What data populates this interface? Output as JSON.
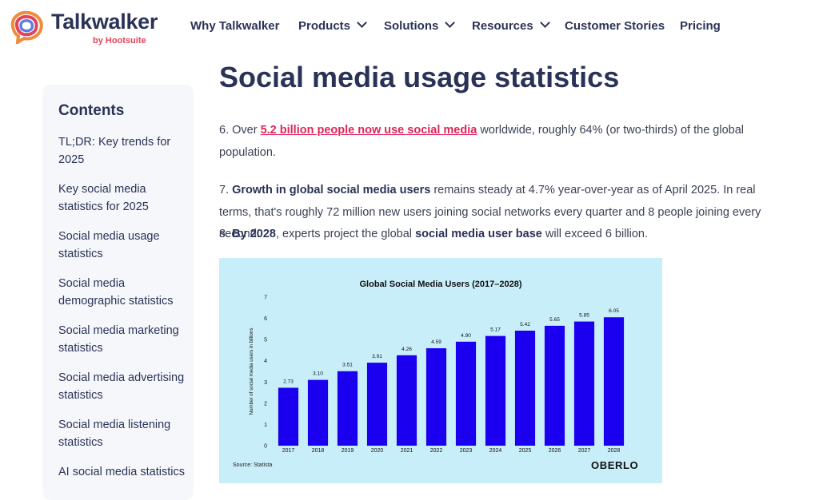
{
  "brand": {
    "name": "Talkwalker",
    "sub": "by Hootsuite",
    "colors": {
      "navy": "#2a3357",
      "pink": "#e2245a",
      "bar": "#1b00f0"
    }
  },
  "nav": {
    "items": [
      "Why Talkwalker",
      "Products",
      "Solutions",
      "Resources",
      "Customer Stories",
      "Pricing"
    ]
  },
  "sidebar": {
    "title": "Contents",
    "items": [
      "TL;DR: Key trends for 2025",
      "Key social media statistics for 2025",
      "Social media usage statistics",
      "Social media demographic statistics",
      "Social media marketing statistics",
      "Social media advertising statistics",
      "Social media listening statistics",
      "AI social media statistics"
    ]
  },
  "main": {
    "title": "Social media usage statistics",
    "p6": {
      "prefix": "6. Over ",
      "link": "5.2 billion people now use social media",
      "suffix": " worldwide, roughly 64% (or two-thirds) of the global population."
    },
    "p7": {
      "prefix": "7. ",
      "bold": "Growth in global social media users",
      "suffix": " remains steady at 4.7% year-over-year as of April 2025. In real terms, that's roughly 72 million new users joining social networks every quarter and 8 people joining every second."
    },
    "p8": {
      "prefix": "8. ",
      "bold1": "By 2028",
      "mid": ", experts project the global ",
      "bold2": "social media user base",
      "suffix": " will exceed 6 billion."
    }
  },
  "chart_data": {
    "type": "bar",
    "title": "Global Social Media Users (2017–2028)",
    "ylabel": "Number of social media users in billions",
    "xlabel": "",
    "categories": [
      "2017",
      "2018",
      "2019",
      "2020",
      "2021",
      "2022",
      "2023",
      "2024",
      "2025",
      "2026",
      "2027",
      "2028"
    ],
    "values": [
      2.73,
      3.1,
      3.51,
      3.91,
      4.26,
      4.59,
      4.9,
      5.17,
      5.42,
      5.65,
      5.85,
      6.05
    ],
    "value_labels": [
      "2.73",
      "3.10",
      "3.51",
      "3.91",
      "4.26",
      "4.59",
      "4.90",
      "5.17",
      "5.42",
      "5.65",
      "5.85",
      "6.05"
    ],
    "ylim": [
      0,
      7
    ],
    "yticks": [
      "0",
      "1",
      "2",
      "3",
      "4",
      "5",
      "6",
      "7"
    ],
    "source": "Source: Statista",
    "watermark": "OBERLO",
    "bar_color": "#1b00f0",
    "background": "#c8eefa",
    "grid": false
  }
}
